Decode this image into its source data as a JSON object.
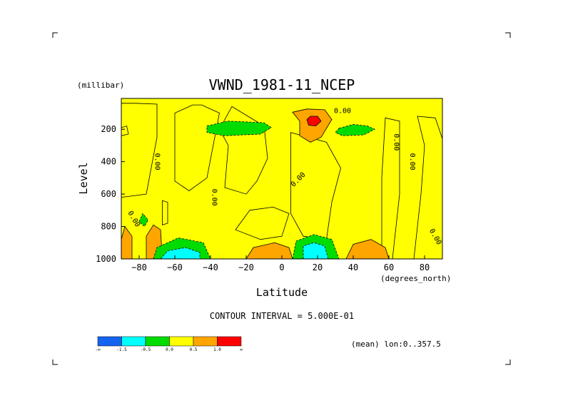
{
  "chart_data": {
    "type": "heatmap",
    "title": "VWND_1981-11_NCEP",
    "xlabel": "Latitude",
    "x_unit": "(degrees_north)",
    "ylabel": "Level",
    "y_unit": "(millibar)",
    "xlim": [
      -90,
      90
    ],
    "ylim": [
      1000,
      10
    ],
    "x_ticks": [
      -80,
      -60,
      -40,
      -20,
      0,
      20,
      40,
      60,
      80
    ],
    "y_ticks": [
      200,
      400,
      600,
      800,
      1000
    ],
    "contour_label": "0.00",
    "contour_interval_text": "CONTOUR INTERVAL = 5.000E-01",
    "mean_text": "(mean) lon:0..357.5",
    "legend": {
      "colors": [
        "#1464f0",
        "#00ffff",
        "#00dc00",
        "#ffff00",
        "#ffa500",
        "#ff0000"
      ],
      "labels": [
        "-∞",
        "-1.5",
        "-0.5",
        "0.0",
        "0.5",
        "1.0",
        "∞"
      ],
      "boundaries": [
        -1.5,
        -0.5,
        0.0,
        0.5,
        1.0
      ]
    },
    "regions": [
      {
        "level": 0,
        "polygon": [
          [
            -82,
            40
          ],
          [
            -70,
            45
          ],
          [
            -70,
            250
          ],
          [
            -76,
            600
          ],
          [
            -90,
            620
          ],
          [
            -90,
            40
          ]
        ]
      },
      {
        "level": 0,
        "polygon": [
          [
            -45,
            50
          ],
          [
            -35,
            100
          ],
          [
            -42,
            500
          ],
          [
            -52,
            580
          ],
          [
            -60,
            520
          ],
          [
            -60,
            100
          ],
          [
            -50,
            50
          ]
        ]
      },
      {
        "level": 0,
        "polygon": [
          [
            -28,
            60
          ],
          [
            -10,
            180
          ],
          [
            -8,
            380
          ],
          [
            -14,
            520
          ],
          [
            -20,
            600
          ],
          [
            -32,
            560
          ],
          [
            -30,
            300
          ],
          [
            -35,
            200
          ]
        ]
      },
      {
        "level": 0,
        "polygon": [
          [
            5,
            220
          ],
          [
            25,
            280
          ],
          [
            33,
            440
          ],
          [
            28,
            650
          ],
          [
            25,
            880
          ],
          [
            12,
            860
          ],
          [
            5,
            720
          ],
          [
            5,
            480
          ]
        ]
      },
      {
        "level": 0,
        "polygon": [
          [
            -18,
            700
          ],
          [
            -5,
            680
          ],
          [
            4,
            720
          ],
          [
            0,
            860
          ],
          [
            -12,
            880
          ],
          [
            -26,
            820
          ]
        ]
      },
      {
        "level": 0,
        "polygon": [
          [
            58,
            130
          ],
          [
            66,
            150
          ],
          [
            66,
            600
          ],
          [
            62,
            1000
          ],
          [
            56,
            1000
          ],
          [
            56,
            500
          ]
        ]
      },
      {
        "level": 0,
        "polygon": [
          [
            76,
            120
          ],
          [
            86,
            130
          ],
          [
            90,
            260
          ],
          [
            90,
            1000
          ],
          [
            74,
            1000
          ],
          [
            78,
            600
          ],
          [
            80,
            300
          ]
        ]
      },
      {
        "level": 0,
        "polygon": [
          [
            -90,
            190
          ],
          [
            -87,
            180
          ],
          [
            -86,
            230
          ],
          [
            -90,
            240
          ]
        ]
      },
      {
        "level": 0,
        "polygon": [
          [
            -67,
            640
          ],
          [
            -64,
            650
          ],
          [
            -64,
            780
          ],
          [
            -67,
            790
          ]
        ]
      },
      {
        "level": 0.5,
        "polygon": [
          [
            -90,
            880
          ],
          [
            -88,
            800
          ],
          [
            -84,
            860
          ],
          [
            -84,
            1000
          ],
          [
            -90,
            1000
          ]
        ]
      },
      {
        "level": 0.5,
        "polygon": [
          [
            -76,
            1000
          ],
          [
            -76,
            860
          ],
          [
            -72,
            790
          ],
          [
            -68,
            820
          ],
          [
            -67,
            1000
          ]
        ]
      },
      {
        "level": 0.5,
        "polygon": [
          [
            -20,
            1000
          ],
          [
            -16,
            930
          ],
          [
            -4,
            900
          ],
          [
            4,
            930
          ],
          [
            6,
            1000
          ]
        ]
      },
      {
        "level": 0.5,
        "polygon": [
          [
            36,
            1000
          ],
          [
            40,
            910
          ],
          [
            50,
            880
          ],
          [
            58,
            930
          ],
          [
            60,
            1000
          ]
        ]
      },
      {
        "level": 0.5,
        "polygon": [
          [
            6,
            95
          ],
          [
            14,
            75
          ],
          [
            24,
            80
          ],
          [
            28,
            140
          ],
          [
            22,
            250
          ],
          [
            16,
            280
          ],
          [
            10,
            240
          ],
          [
            10,
            150
          ]
        ]
      },
      {
        "level": 1.0,
        "polygon": [
          [
            14,
            140
          ],
          [
            16,
            120
          ],
          [
            20,
            120
          ],
          [
            22,
            150
          ],
          [
            19,
            180
          ],
          [
            15,
            175
          ]
        ]
      },
      {
        "level": -0.5,
        "polygon": [
          [
            -42,
            180
          ],
          [
            -30,
            150
          ],
          [
            -10,
            160
          ],
          [
            -6,
            190
          ],
          [
            -12,
            230
          ],
          [
            -32,
            240
          ],
          [
            -42,
            220
          ]
        ]
      },
      {
        "level": -0.5,
        "polygon": [
          [
            32,
            195
          ],
          [
            40,
            170
          ],
          [
            48,
            180
          ],
          [
            52,
            200
          ],
          [
            46,
            235
          ],
          [
            34,
            240
          ],
          [
            30,
            220
          ]
        ]
      },
      {
        "level": -0.5,
        "polygon": [
          [
            -72,
            1000
          ],
          [
            -70,
            930
          ],
          [
            -58,
            870
          ],
          [
            -44,
            900
          ],
          [
            -40,
            1000
          ]
        ]
      },
      {
        "level": -0.5,
        "polygon": [
          [
            6,
            1000
          ],
          [
            8,
            890
          ],
          [
            18,
            850
          ],
          [
            28,
            880
          ],
          [
            32,
            1000
          ]
        ]
      },
      {
        "level": -0.5,
        "polygon": [
          [
            -80,
            770
          ],
          [
            -78,
            720
          ],
          [
            -75,
            760
          ],
          [
            -77,
            800
          ]
        ]
      },
      {
        "level": -1.5,
        "polygon": [
          [
            -68,
            1000
          ],
          [
            -64,
            950
          ],
          [
            -54,
            930
          ],
          [
            -46,
            960
          ],
          [
            -46,
            1000
          ]
        ]
      },
      {
        "level": -1.5,
        "polygon": [
          [
            12,
            1000
          ],
          [
            12,
            920
          ],
          [
            18,
            900
          ],
          [
            24,
            920
          ],
          [
            26,
            1000
          ]
        ]
      }
    ]
  }
}
